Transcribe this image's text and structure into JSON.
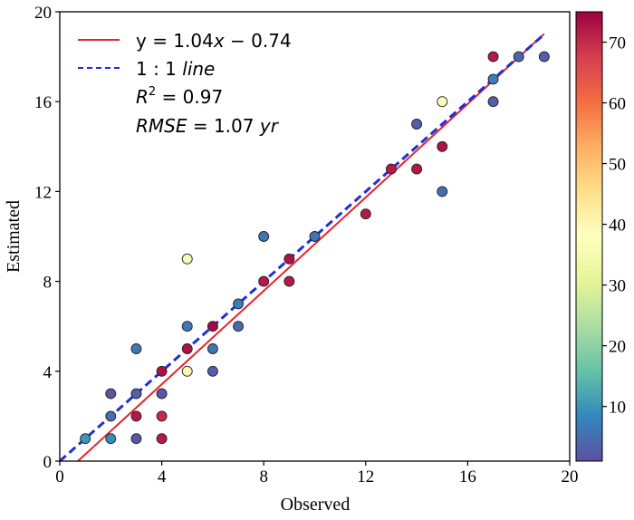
{
  "chart_data": {
    "type": "scatter",
    "title": "",
    "xlabel": "Observed",
    "ylabel": "Estimated",
    "xlim": [
      0,
      20
    ],
    "ylim": [
      0,
      20
    ],
    "xticks": [
      "0",
      "4",
      "8",
      "12",
      "16",
      "20"
    ],
    "yticks": [
      "0",
      "4",
      "8",
      "12",
      "16",
      "20"
    ],
    "grid": false,
    "legend_position": "top-left",
    "fit_line": {
      "slope": 1.04,
      "intercept": -0.74,
      "color": "#e8232a",
      "x_range": [
        0.7,
        19
      ]
    },
    "identity_line": {
      "color": "#1f2fd6",
      "x_range": [
        0,
        19
      ]
    },
    "legend": {
      "fit_label": {
        "pre": "y = 1.04",
        "var": "x",
        "post": " − 0.74"
      },
      "identity_label": {
        "pre": "1 : 1 ",
        "var": "line"
      },
      "r2_label": {
        "pre": "R",
        "sup": "2",
        "post": " = 0.97"
      },
      "rmse_label": {
        "pre": "RMSE",
        "post": " = 1.07 ",
        "unit": "yr"
      }
    },
    "colorbar": {
      "range": [
        1,
        75
      ],
      "ticks": [
        "10",
        "20",
        "30",
        "40",
        "50",
        "60",
        "70"
      ],
      "colormap": "Spectral_r"
    },
    "points": [
      {
        "x": 1,
        "y": 1,
        "c": 10
      },
      {
        "x": 2,
        "y": 1,
        "c": 9
      },
      {
        "x": 2,
        "y": 2,
        "c": 5
      },
      {
        "x": 2,
        "y": 3,
        "c": 2
      },
      {
        "x": 3,
        "y": 1,
        "c": 2
      },
      {
        "x": 3,
        "y": 2,
        "c": 72
      },
      {
        "x": 3,
        "y": 3,
        "c": 3
      },
      {
        "x": 3,
        "y": 5,
        "c": 6
      },
      {
        "x": 4,
        "y": 1,
        "c": 72
      },
      {
        "x": 4,
        "y": 2,
        "c": 70
      },
      {
        "x": 4,
        "y": 3,
        "c": 2
      },
      {
        "x": 4,
        "y": 4,
        "c": 73
      },
      {
        "x": 5,
        "y": 4,
        "c": 40
      },
      {
        "x": 5,
        "y": 5,
        "c": 73
      },
      {
        "x": 5,
        "y": 6,
        "c": 6
      },
      {
        "x": 5,
        "y": 9,
        "c": 36
      },
      {
        "x": 6,
        "y": 4,
        "c": 3
      },
      {
        "x": 6,
        "y": 5,
        "c": 6
      },
      {
        "x": 6,
        "y": 6,
        "c": 74
      },
      {
        "x": 7,
        "y": 6,
        "c": 4
      },
      {
        "x": 7,
        "y": 7,
        "c": 7
      },
      {
        "x": 8,
        "y": 8,
        "c": 72
      },
      {
        "x": 8,
        "y": 10,
        "c": 6
      },
      {
        "x": 9,
        "y": 8,
        "c": 72
      },
      {
        "x": 9,
        "y": 9,
        "c": 73
      },
      {
        "x": 10,
        "y": 10,
        "c": 6
      },
      {
        "x": 12,
        "y": 11,
        "c": 72
      },
      {
        "x": 13,
        "y": 13,
        "c": 72
      },
      {
        "x": 14,
        "y": 13,
        "c": 72
      },
      {
        "x": 14,
        "y": 15,
        "c": 3
      },
      {
        "x": 15,
        "y": 12,
        "c": 5
      },
      {
        "x": 15,
        "y": 14,
        "c": 73
      },
      {
        "x": 15,
        "y": 16,
        "c": 38
      },
      {
        "x": 17,
        "y": 16,
        "c": 3
      },
      {
        "x": 17,
        "y": 17,
        "c": 7
      },
      {
        "x": 17,
        "y": 18,
        "c": 72
      },
      {
        "x": 18,
        "y": 18,
        "c": 4
      },
      {
        "x": 19,
        "y": 18,
        "c": 3
      }
    ]
  }
}
